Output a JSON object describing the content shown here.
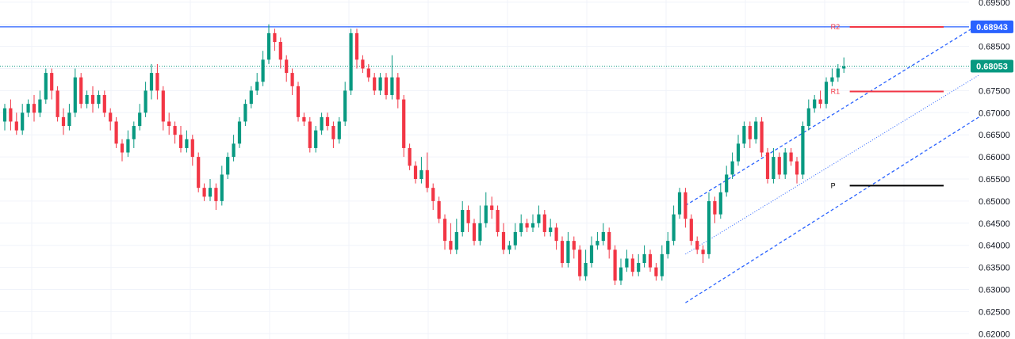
{
  "chart_data": {
    "type": "candlestick",
    "y_axis": {
      "position": "right",
      "ylim": [
        0.6188,
        0.6955
      ],
      "ticks": [
        "0.69500",
        "0.69000",
        "0.68500",
        "0.68000",
        "0.67500",
        "0.67000",
        "0.66500",
        "0.66000",
        "0.65500",
        "0.65000",
        "0.64500",
        "0.64000",
        "0.63500",
        "0.63000",
        "0.62500",
        "0.62000"
      ],
      "tick_values": [
        0.695,
        0.69,
        0.685,
        0.68,
        0.675,
        0.67,
        0.665,
        0.66,
        0.655,
        0.65,
        0.645,
        0.64,
        0.635,
        0.63,
        0.625,
        0.62
      ]
    },
    "grid": true,
    "colors": {
      "up": "#089981",
      "down": "#f23645",
      "level_red": "#f23645",
      "pivot": "#000000",
      "blue": "#2962ff",
      "current_dotted": "#089981"
    },
    "candles": [
      [
        0.668,
        0.671,
        0.672,
        0.666
      ],
      [
        0.671,
        0.668,
        0.673,
        0.666
      ],
      [
        0.668,
        0.666,
        0.67,
        0.665
      ],
      [
        0.666,
        0.67,
        0.672,
        0.665
      ],
      [
        0.67,
        0.672,
        0.673,
        0.669
      ],
      [
        0.672,
        0.67,
        0.674,
        0.668
      ],
      [
        0.67,
        0.673,
        0.675,
        0.669
      ],
      [
        0.673,
        0.679,
        0.68,
        0.672
      ],
      [
        0.679,
        0.675,
        0.68,
        0.673
      ],
      [
        0.675,
        0.669,
        0.676,
        0.668
      ],
      [
        0.669,
        0.667,
        0.671,
        0.665
      ],
      [
        0.667,
        0.67,
        0.672,
        0.666
      ],
      [
        0.67,
        0.678,
        0.68,
        0.669
      ],
      [
        0.678,
        0.672,
        0.679,
        0.671
      ],
      [
        0.672,
        0.674,
        0.675,
        0.671
      ],
      [
        0.674,
        0.672,
        0.676,
        0.67
      ],
      [
        0.672,
        0.674,
        0.675,
        0.671
      ],
      [
        0.674,
        0.67,
        0.675,
        0.669
      ],
      [
        0.67,
        0.668,
        0.671,
        0.666
      ],
      [
        0.668,
        0.663,
        0.669,
        0.662
      ],
      [
        0.663,
        0.661,
        0.664,
        0.659
      ],
      [
        0.661,
        0.664,
        0.666,
        0.66
      ],
      [
        0.664,
        0.667,
        0.668,
        0.662
      ],
      [
        0.667,
        0.67,
        0.672,
        0.666
      ],
      [
        0.67,
        0.675,
        0.677,
        0.669
      ],
      [
        0.675,
        0.679,
        0.681,
        0.673
      ],
      [
        0.679,
        0.675,
        0.681,
        0.673
      ],
      [
        0.675,
        0.668,
        0.676,
        0.666
      ],
      [
        0.668,
        0.667,
        0.67,
        0.665
      ],
      [
        0.667,
        0.665,
        0.668,
        0.663
      ],
      [
        0.665,
        0.662,
        0.667,
        0.661
      ],
      [
        0.662,
        0.664,
        0.666,
        0.661
      ],
      [
        0.664,
        0.66,
        0.665,
        0.658
      ],
      [
        0.66,
        0.653,
        0.661,
        0.652
      ],
      [
        0.653,
        0.651,
        0.654,
        0.65
      ],
      [
        0.651,
        0.653,
        0.655,
        0.65
      ],
      [
        0.653,
        0.65,
        0.654,
        0.648
      ],
      [
        0.65,
        0.656,
        0.658,
        0.649
      ],
      [
        0.656,
        0.66,
        0.661,
        0.655
      ],
      [
        0.66,
        0.663,
        0.665,
        0.659
      ],
      [
        0.663,
        0.668,
        0.669,
        0.662
      ],
      [
        0.668,
        0.672,
        0.673,
        0.667
      ],
      [
        0.672,
        0.675,
        0.676,
        0.671
      ],
      [
        0.675,
        0.677,
        0.679,
        0.674
      ],
      [
        0.677,
        0.682,
        0.684,
        0.676
      ],
      [
        0.682,
        0.688,
        0.69,
        0.681
      ],
      [
        0.688,
        0.686,
        0.689,
        0.684
      ],
      [
        0.686,
        0.682,
        0.687,
        0.68
      ],
      [
        0.682,
        0.679,
        0.683,
        0.677
      ],
      [
        0.679,
        0.676,
        0.68,
        0.674
      ],
      [
        0.676,
        0.669,
        0.677,
        0.668
      ],
      [
        0.669,
        0.668,
        0.67,
        0.667
      ],
      [
        0.668,
        0.662,
        0.669,
        0.661
      ],
      [
        0.662,
        0.666,
        0.667,
        0.661
      ],
      [
        0.666,
        0.669,
        0.67,
        0.665
      ],
      [
        0.669,
        0.667,
        0.67,
        0.666
      ],
      [
        0.667,
        0.664,
        0.668,
        0.662
      ],
      [
        0.664,
        0.668,
        0.669,
        0.663
      ],
      [
        0.668,
        0.675,
        0.677,
        0.667
      ],
      [
        0.675,
        0.688,
        0.689,
        0.674
      ],
      [
        0.688,
        0.682,
        0.689,
        0.68
      ],
      [
        0.682,
        0.68,
        0.683,
        0.679
      ],
      [
        0.68,
        0.678,
        0.681,
        0.677
      ],
      [
        0.678,
        0.675,
        0.679,
        0.674
      ],
      [
        0.675,
        0.678,
        0.679,
        0.674
      ],
      [
        0.678,
        0.674,
        0.679,
        0.673
      ],
      [
        0.674,
        0.678,
        0.683,
        0.673
      ],
      [
        0.678,
        0.673,
        0.679,
        0.671
      ],
      [
        0.673,
        0.662,
        0.674,
        0.66
      ],
      [
        0.662,
        0.658,
        0.663,
        0.657
      ],
      [
        0.658,
        0.655,
        0.659,
        0.654
      ],
      [
        0.655,
        0.657,
        0.66,
        0.654
      ],
      [
        0.657,
        0.653,
        0.661,
        0.652
      ],
      [
        0.653,
        0.65,
        0.654,
        0.648
      ],
      [
        0.65,
        0.646,
        0.651,
        0.645
      ],
      [
        0.646,
        0.641,
        0.647,
        0.639
      ],
      [
        0.641,
        0.639,
        0.645,
        0.638
      ],
      [
        0.639,
        0.643,
        0.646,
        0.638
      ],
      [
        0.643,
        0.648,
        0.65,
        0.642
      ],
      [
        0.648,
        0.645,
        0.649,
        0.643
      ],
      [
        0.645,
        0.641,
        0.646,
        0.64
      ],
      [
        0.641,
        0.645,
        0.649,
        0.64
      ],
      [
        0.645,
        0.649,
        0.652,
        0.644
      ],
      [
        0.649,
        0.648,
        0.651,
        0.646
      ],
      [
        0.648,
        0.643,
        0.649,
        0.642
      ],
      [
        0.643,
        0.639,
        0.645,
        0.638
      ],
      [
        0.639,
        0.64,
        0.641,
        0.638
      ],
      [
        0.64,
        0.643,
        0.645,
        0.639
      ],
      [
        0.643,
        0.645,
        0.647,
        0.642
      ],
      [
        0.645,
        0.644,
        0.646,
        0.643
      ],
      [
        0.644,
        0.645,
        0.647,
        0.643
      ],
      [
        0.645,
        0.647,
        0.649,
        0.644
      ],
      [
        0.647,
        0.643,
        0.648,
        0.642
      ],
      [
        0.643,
        0.644,
        0.646,
        0.642
      ],
      [
        0.644,
        0.641,
        0.645,
        0.639
      ],
      [
        0.641,
        0.636,
        0.642,
        0.635
      ],
      [
        0.636,
        0.641,
        0.643,
        0.635
      ],
      [
        0.641,
        0.639,
        0.642,
        0.637
      ],
      [
        0.639,
        0.633,
        0.64,
        0.632
      ],
      [
        0.633,
        0.636,
        0.639,
        0.632
      ],
      [
        0.636,
        0.64,
        0.642,
        0.635
      ],
      [
        0.64,
        0.641,
        0.643,
        0.639
      ],
      [
        0.641,
        0.643,
        0.645,
        0.64
      ],
      [
        0.643,
        0.639,
        0.644,
        0.637
      ],
      [
        0.639,
        0.632,
        0.64,
        0.631
      ],
      [
        0.632,
        0.635,
        0.637,
        0.631
      ],
      [
        0.635,
        0.637,
        0.639,
        0.634
      ],
      [
        0.637,
        0.634,
        0.638,
        0.633
      ],
      [
        0.634,
        0.636,
        0.638,
        0.633
      ],
      [
        0.636,
        0.638,
        0.64,
        0.635
      ],
      [
        0.638,
        0.635,
        0.639,
        0.634
      ],
      [
        0.635,
        0.633,
        0.636,
        0.632
      ],
      [
        0.633,
        0.638,
        0.64,
        0.632
      ],
      [
        0.638,
        0.641,
        0.643,
        0.637
      ],
      [
        0.641,
        0.647,
        0.649,
        0.64
      ],
      [
        0.647,
        0.652,
        0.653,
        0.646
      ],
      [
        0.652,
        0.646,
        0.653,
        0.644
      ],
      [
        0.646,
        0.641,
        0.647,
        0.64
      ],
      [
        0.641,
        0.639,
        0.642,
        0.638
      ],
      [
        0.639,
        0.638,
        0.64,
        0.636
      ],
      [
        0.638,
        0.65,
        0.652,
        0.637
      ],
      [
        0.65,
        0.647,
        0.651,
        0.645
      ],
      [
        0.647,
        0.652,
        0.654,
        0.646
      ],
      [
        0.652,
        0.656,
        0.658,
        0.651
      ],
      [
        0.656,
        0.659,
        0.661,
        0.655
      ],
      [
        0.659,
        0.663,
        0.665,
        0.658
      ],
      [
        0.663,
        0.667,
        0.668,
        0.662
      ],
      [
        0.667,
        0.664,
        0.668,
        0.662
      ],
      [
        0.664,
        0.668,
        0.669,
        0.663
      ],
      [
        0.668,
        0.661,
        0.669,
        0.66
      ],
      [
        0.661,
        0.655,
        0.662,
        0.654
      ],
      [
        0.655,
        0.66,
        0.662,
        0.654
      ],
      [
        0.66,
        0.656,
        0.661,
        0.655
      ],
      [
        0.656,
        0.661,
        0.662,
        0.655
      ],
      [
        0.661,
        0.659,
        0.662,
        0.658
      ],
      [
        0.659,
        0.656,
        0.66,
        0.654
      ],
      [
        0.656,
        0.667,
        0.668,
        0.655
      ],
      [
        0.667,
        0.671,
        0.673,
        0.666
      ],
      [
        0.671,
        0.673,
        0.674,
        0.67
      ],
      [
        0.673,
        0.672,
        0.675,
        0.671
      ],
      [
        0.672,
        0.677,
        0.678,
        0.671
      ],
      [
        0.677,
        0.678,
        0.68,
        0.676
      ],
      [
        0.678,
        0.68,
        0.681,
        0.677
      ],
      [
        0.68,
        0.6805,
        0.6825,
        0.679
      ]
    ],
    "levels": [
      {
        "label": "R2",
        "value": 0.6894,
        "color": "#f23645"
      },
      {
        "label": "R1",
        "value": 0.6748,
        "color": "#f23645"
      },
      {
        "label": "P",
        "value": 0.6535,
        "color": "#000000"
      }
    ],
    "horizontal_line": {
      "value": 0.68943,
      "color": "#2962ff"
    },
    "price_badges": [
      {
        "text": "0.68943",
        "value": 0.68943,
        "color": "#2962ff"
      },
      {
        "text": "0.68053",
        "value": 0.68053,
        "color": "#089981"
      }
    ],
    "channel": {
      "color": "#2962ff",
      "upper": [
        [
          116,
          0.649
        ],
        [
          166,
          0.69
        ]
      ],
      "middle": [
        [
          116,
          0.638
        ],
        [
          166,
          0.6785
        ]
      ],
      "lower": [
        [
          116,
          0.627
        ],
        [
          166,
          0.669
        ]
      ]
    }
  }
}
